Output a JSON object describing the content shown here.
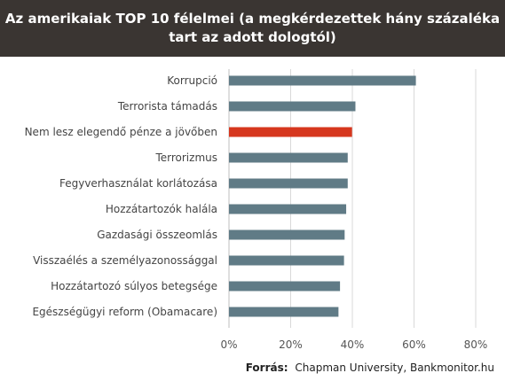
{
  "header": {
    "title_line1": "Az amerikaiak TOP 10 félelmei (a megkérdezettek hány százaléka",
    "title_line2": "tart az adott dologtól)"
  },
  "source": {
    "label": "Forrás:",
    "text": "Chapman University, Bankmonitor.hu"
  },
  "colors": {
    "title_bg": "#3a3532",
    "bar_default": "#607b86",
    "bar_highlight": "#d6371e",
    "grid": "#d9d9d9"
  },
  "chart_data": {
    "type": "bar",
    "orientation": "horizontal",
    "categories": [
      "Korrupció",
      "Terrorista támadás",
      "Nem lesz elegendő pénze a jövőben",
      "Terrorizmus",
      "Fegyverhasználat korlátozása",
      "Hozzátartozók halála",
      "Gazdasági összeomlás",
      "Visszaélés a személyazonossággal",
      "Hozzátartozó súlyos betegsége",
      "Egészségügyi reform (Obamacare)"
    ],
    "values": [
      60.6,
      41.0,
      39.9,
      38.5,
      38.5,
      38.0,
      37.5,
      37.3,
      36.0,
      35.5
    ],
    "highlight_index": 2,
    "x_ticks": [
      "0%",
      "20%",
      "40%",
      "60%",
      "80%"
    ],
    "xlim": [
      0,
      80
    ],
    "grid": true
  }
}
